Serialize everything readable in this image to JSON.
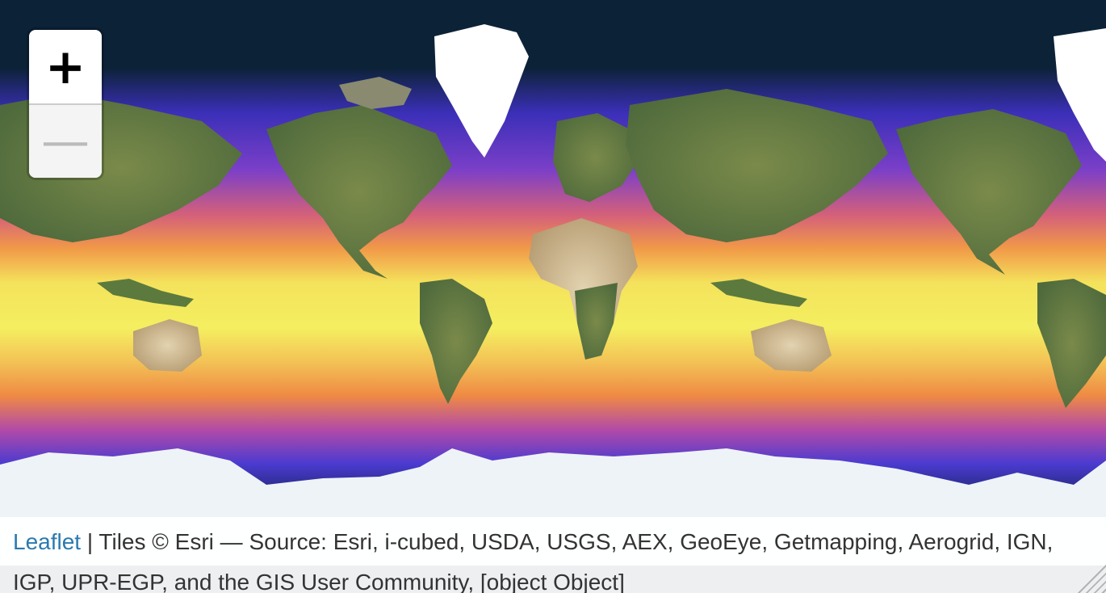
{
  "map": {
    "background_color": "#0c2237",
    "layer_colors": {
      "ocean_deep": "#0c2237",
      "ocean_cold": "#4a3bd0",
      "ocean_cool": "#8c3fc0",
      "ocean_warm": "#f08a3c",
      "ocean_hot": "#f2f25a",
      "land": "#6f7c45",
      "desert": "#c9b48a",
      "ice": "#ffffff"
    }
  },
  "zoom_control": {
    "zoom_in_label": "+",
    "zoom_out_label": "—",
    "zoom_in_icon": "plus-icon",
    "zoom_out_icon": "minus-icon"
  },
  "attribution": {
    "leaflet_link": "Leaflet",
    "separator": " | ",
    "text": "Tiles © Esri — Source: Esri, i-cubed, USDA, USGS, AEX, GeoEye, Getmapping, Aerogrid, IGN, IGP, UPR-EGP, and the GIS User Community, [object Object]"
  }
}
